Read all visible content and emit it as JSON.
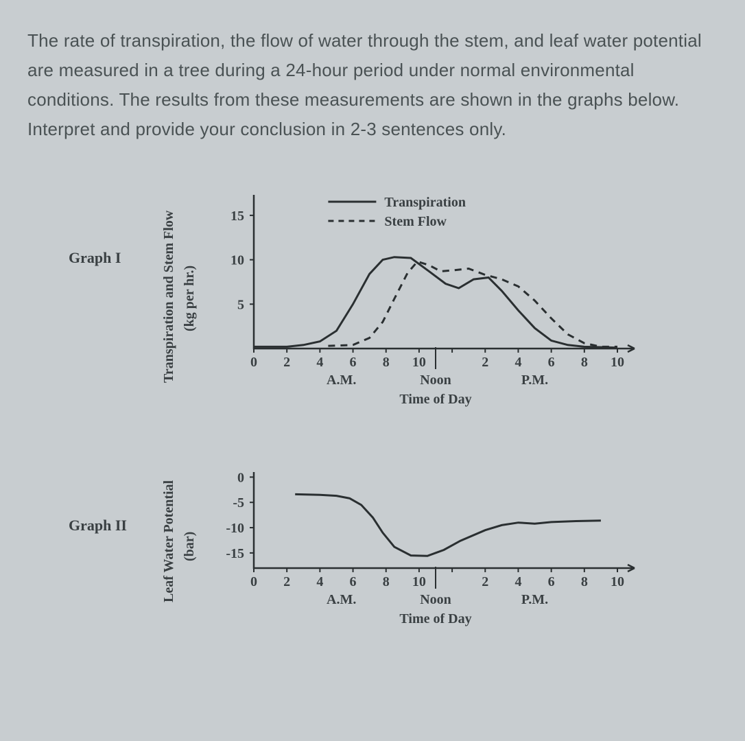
{
  "question": {
    "text": "The rate of transpiration, the flow of water through the stem, and leaf water potential are measured in a tree during a 24-hour period under normal environmental conditions. The results from these measurements are shown in the graphs below. Interpret and provide your conclusion in 2-3 sentences only."
  },
  "figure": {
    "graph1": {
      "label": "Graph I",
      "y_axis_label_line1": "Transpiration and Stem Flow",
      "y_axis_label_line2": "(kg per hr.)",
      "y_ticks": [
        5,
        10,
        15
      ],
      "y_range": [
        0,
        17
      ],
      "x_ticks": [
        0,
        2,
        4,
        6,
        8,
        10,
        2,
        4,
        6,
        8,
        10
      ],
      "x_sub_labels": {
        "am": "A.M.",
        "noon": "Noon",
        "pm": "P.M."
      },
      "x_axis_label": "Time of Day",
      "legend": {
        "solid": "Transpiration",
        "dash": "Stem Flow"
      },
      "series_transpiration": [
        [
          0,
          0.2
        ],
        [
          2,
          0.2
        ],
        [
          3,
          0.4
        ],
        [
          4,
          0.8
        ],
        [
          5,
          2.0
        ],
        [
          6,
          5.0
        ],
        [
          7,
          8.4
        ],
        [
          7.8,
          10.0
        ],
        [
          8.5,
          10.3
        ],
        [
          9.5,
          10.2
        ],
        [
          10.6,
          8.7
        ],
        [
          11.6,
          7.3
        ],
        [
          12.4,
          6.8
        ],
        [
          13.3,
          7.8
        ],
        [
          14.2,
          8.0
        ],
        [
          15,
          6.5
        ],
        [
          16,
          4.3
        ],
        [
          17,
          2.3
        ],
        [
          18,
          0.9
        ],
        [
          19,
          0.4
        ],
        [
          20,
          0.2
        ],
        [
          22,
          0.1
        ]
      ],
      "series_stemflow": [
        [
          4.5,
          0.3
        ],
        [
          6,
          0.4
        ],
        [
          7,
          1.2
        ],
        [
          7.8,
          3.0
        ],
        [
          8.5,
          5.6
        ],
        [
          9.3,
          8.5
        ],
        [
          9.9,
          9.8
        ],
        [
          10.6,
          9.4
        ],
        [
          11.3,
          8.7
        ],
        [
          12.0,
          8.8
        ],
        [
          13.0,
          9.0
        ],
        [
          14.0,
          8.3
        ],
        [
          15.0,
          7.8
        ],
        [
          16.0,
          7.0
        ],
        [
          17.0,
          5.4
        ],
        [
          18.0,
          3.4
        ],
        [
          19.0,
          1.6
        ],
        [
          20.0,
          0.6
        ],
        [
          21.0,
          0.2
        ],
        [
          22,
          0.2
        ]
      ],
      "colors": {
        "line": "#2a2f31",
        "bg": "#c8cdd0"
      }
    },
    "graph2": {
      "label": "Graph II",
      "y_axis_label_line1": "Leaf Water Potential",
      "y_axis_label_line2": "(bar)",
      "y_ticks": [
        0,
        -5,
        -10,
        -15
      ],
      "y_range": [
        -18,
        1
      ],
      "x_ticks": [
        0,
        2,
        4,
        6,
        8,
        10,
        2,
        4,
        6,
        8,
        10
      ],
      "x_sub_labels": {
        "am": "A.M.",
        "noon": "Noon",
        "pm": "P.M."
      },
      "x_axis_label": "Time of Day",
      "series_potential": [
        [
          2.5,
          -3.4
        ],
        [
          4,
          -3.5
        ],
        [
          5,
          -3.7
        ],
        [
          5.8,
          -4.2
        ],
        [
          6.5,
          -5.5
        ],
        [
          7.2,
          -8.0
        ],
        [
          7.8,
          -11.0
        ],
        [
          8.5,
          -13.8
        ],
        [
          9.5,
          -15.5
        ],
        [
          10.5,
          -15.6
        ],
        [
          11.5,
          -14.4
        ],
        [
          12.5,
          -12.6
        ],
        [
          14.0,
          -10.5
        ],
        [
          15.0,
          -9.5
        ],
        [
          16.0,
          -9.0
        ],
        [
          17.0,
          -9.2
        ],
        [
          18.0,
          -8.9
        ],
        [
          19.5,
          -8.7
        ],
        [
          21.0,
          -8.6
        ]
      ],
      "colors": {
        "line": "#2a2f31",
        "bg": "#c8cdd0"
      }
    }
  }
}
